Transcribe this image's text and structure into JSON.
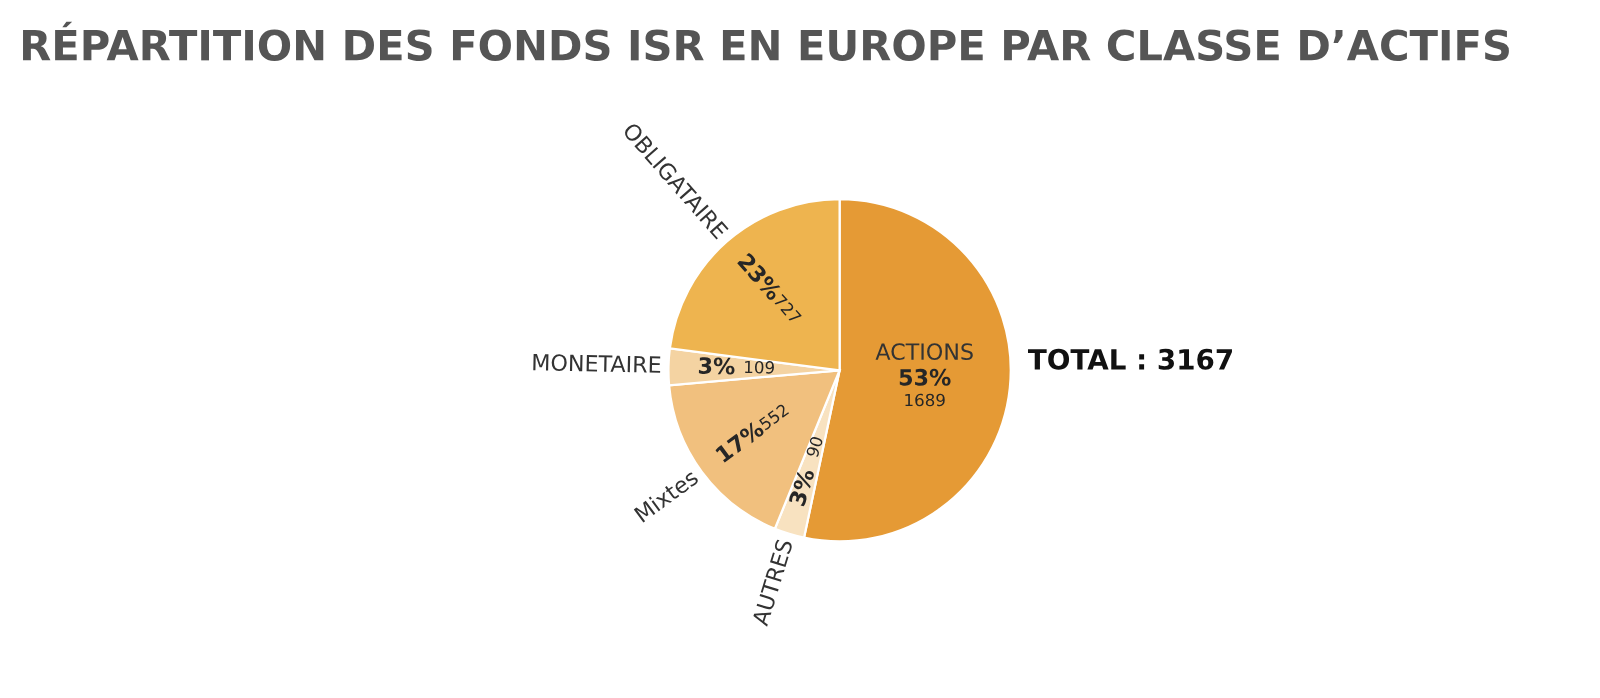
{
  "chart_data": {
    "type": "pie",
    "title": "RÉPARTITION DES FONDS ISR EN EUROPE PAR CLASSE D’ACTIFS",
    "categories": [
      "ACTIONS",
      "AUTRES",
      "Mixtes",
      "MONETAIRE",
      "OBLIGATAIRE"
    ],
    "values": [
      1689,
      90,
      552,
      109,
      727
    ],
    "value_labels": [
      "1689",
      "90",
      "552",
      "109",
      "727"
    ],
    "colors": [
      "#e59a35",
      "#f8e2c0",
      "#f1c07e",
      "#f4d3a2",
      "#eeb44f"
    ],
    "annotations": [
      {
        "text": "53%",
        "x": "ACTIONS"
      },
      {
        "text": "3%",
        "x": "AUTRES"
      },
      {
        "text": "17%",
        "x": "Mixtes"
      },
      {
        "text": "3%",
        "x": "MONETAIRE"
      },
      {
        "text": "23%",
        "x": "OBLIGATAIRE"
      },
      "TOTAL : 3167"
    ]
  }
}
